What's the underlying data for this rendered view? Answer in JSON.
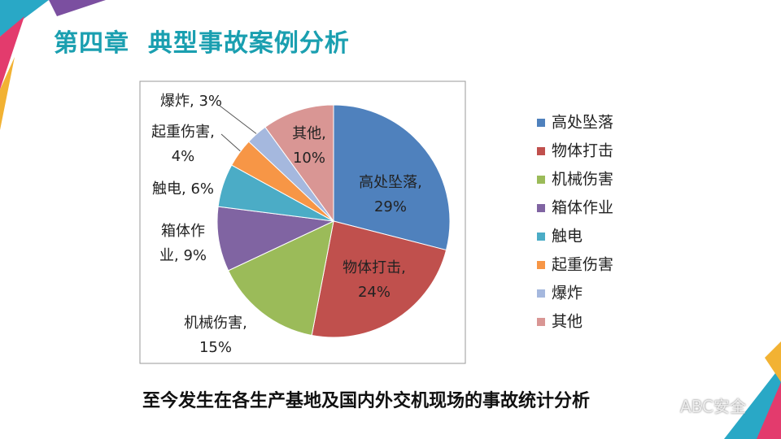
{
  "slide_title": "第四章  典型事故案例分析",
  "chart_data": {
    "type": "pie",
    "categories": [
      "高处坠落",
      "物体打击",
      "机械伤害",
      "箱体作业",
      "触电",
      "起重伤害",
      "爆炸",
      "其他"
    ],
    "values": [
      29,
      24,
      15,
      9,
      6,
      4,
      3,
      10
    ],
    "value_labels": [
      "高处坠落, 29%",
      "物体打击, 24%",
      "机械伤害, 15%",
      "箱体作业, 9%",
      "触电, 6%",
      "起重伤害, 4%",
      "爆炸, 3%",
      "其他, 10%"
    ],
    "colors": [
      "#4f81bd",
      "#c0504d",
      "#9bbb59",
      "#8064a2",
      "#4bacc6",
      "#f79646",
      "#a5b8de",
      "#d99694"
    ],
    "legend": "right"
  },
  "caption": "至今发生在各生产基地及国内外交机现场的事故统计分析",
  "watermark": "ABC安全"
}
